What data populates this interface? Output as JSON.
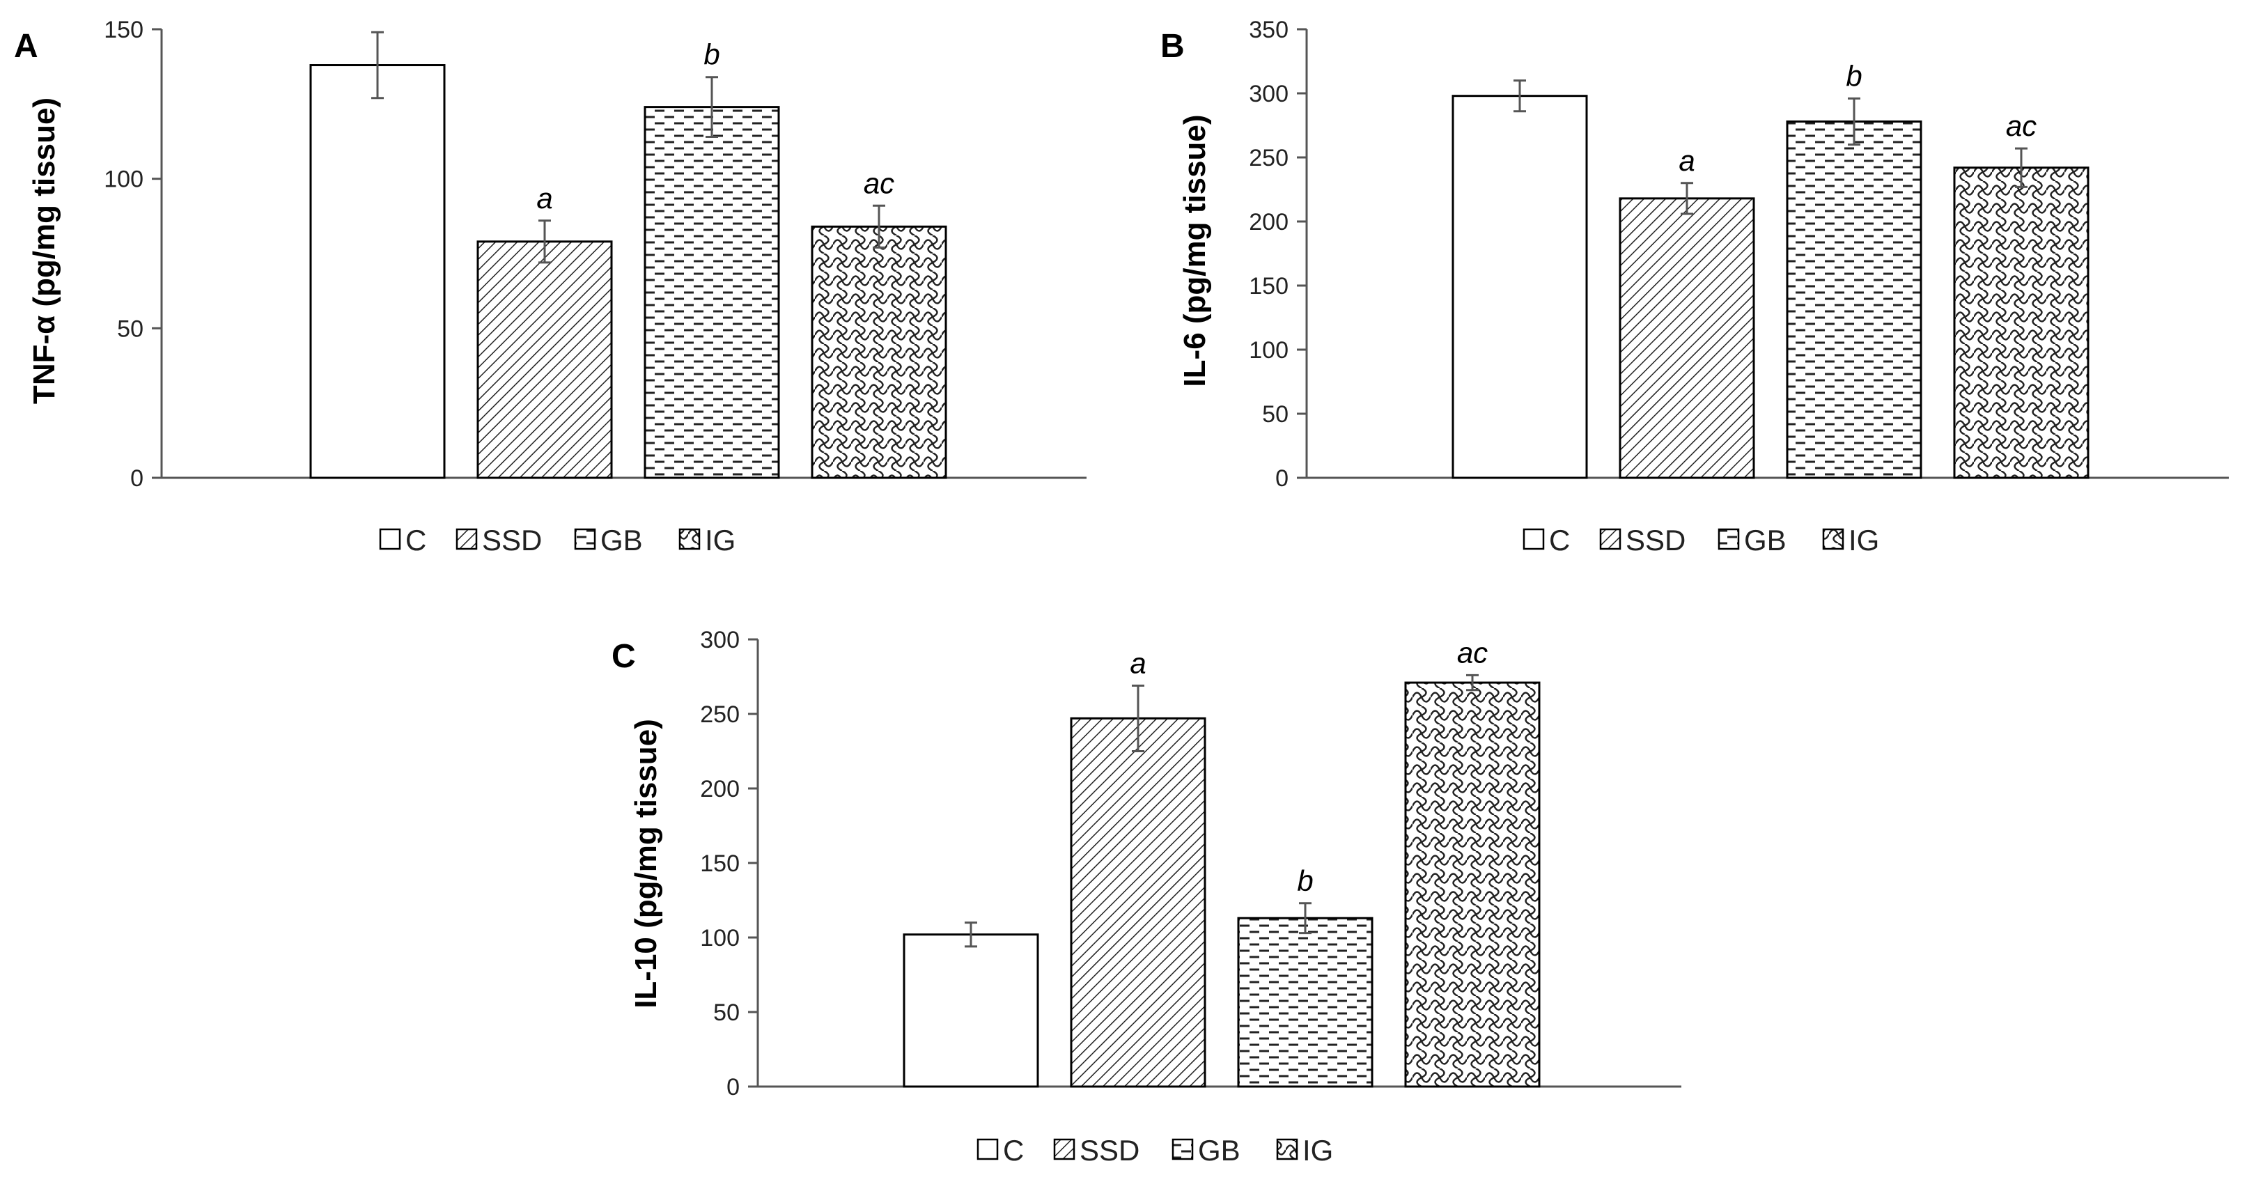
{
  "series_styles": [
    {
      "name": "C",
      "pattern": "none"
    },
    {
      "name": "SSD",
      "pattern": "diagonal"
    },
    {
      "name": "GB",
      "pattern": "dashes"
    },
    {
      "name": "IG",
      "pattern": "weave"
    }
  ],
  "chart_data": [
    {
      "type": "bar",
      "panel": "A",
      "ylabel": "TNF-α (pg/mg tissue)",
      "ylim": [
        0,
        150
      ],
      "ticks": [
        0,
        50,
        100,
        150
      ],
      "categories": [
        "C",
        "SSD",
        "GB",
        "IG"
      ],
      "values": [
        138,
        79,
        124,
        84
      ],
      "errors": [
        11,
        7,
        10,
        7
      ],
      "sig": [
        "",
        "a",
        "b",
        "ac"
      ],
      "legend": [
        "C",
        "SSD",
        "GB",
        "IG"
      ]
    },
    {
      "type": "bar",
      "panel": "B",
      "ylabel": "IL-6  (pg/mg tissue)",
      "ylim": [
        0,
        350
      ],
      "ticks": [
        0,
        50,
        100,
        150,
        200,
        250,
        300,
        350
      ],
      "categories": [
        "C",
        "SSD",
        "GB",
        "IG"
      ],
      "values": [
        298,
        218,
        278,
        242
      ],
      "errors": [
        12,
        12,
        18,
        15
      ],
      "sig": [
        "",
        "a",
        "b",
        "ac"
      ],
      "legend": [
        "C",
        "SSD",
        "GB",
        "IG"
      ]
    },
    {
      "type": "bar",
      "panel": "C",
      "ylabel": "IL-10  (pg/mg tissue)",
      "ylim": [
        0,
        300
      ],
      "ticks": [
        0,
        50,
        100,
        150,
        200,
        250,
        300
      ],
      "categories": [
        "C",
        "SSD",
        "GB",
        "IG"
      ],
      "values": [
        102,
        247,
        113,
        271
      ],
      "errors": [
        8,
        22,
        10,
        5
      ],
      "sig": [
        "",
        "a",
        "b",
        "ac"
      ],
      "legend": [
        "C",
        "SSD",
        "GB",
        "IG"
      ]
    }
  ]
}
